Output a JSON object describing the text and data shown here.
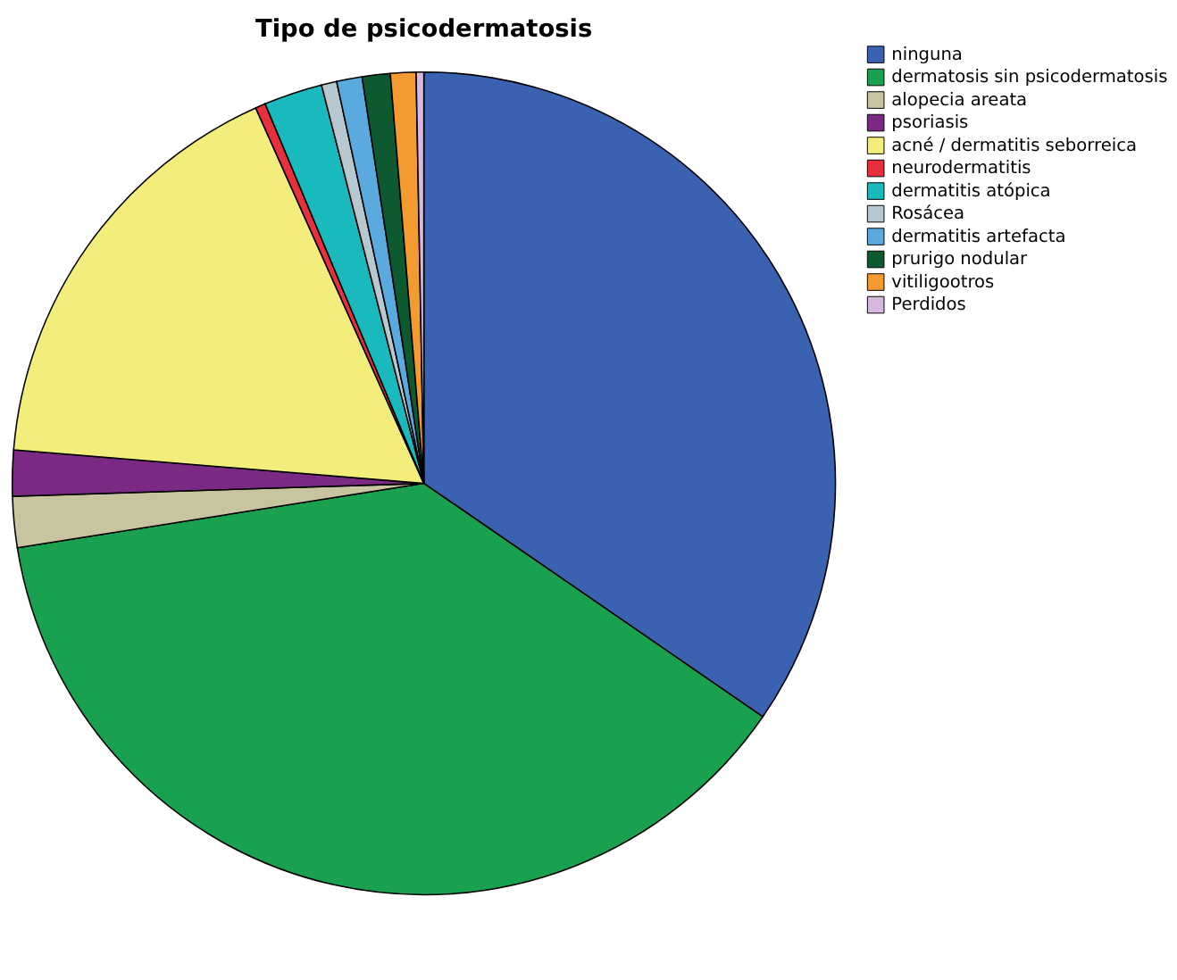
{
  "chart_data": {
    "type": "pie",
    "title": "Tipo de psicodermatosis",
    "categories": [
      "ninguna",
      "dermatosis sin psicodermatosis",
      "alopecia areata",
      "psoriasis",
      "acné / dermatitis seborreica",
      "neurodermatitis",
      "dermatitis atópica",
      "Rosácea",
      "dermatitis artefacta",
      "prurigo nodular",
      "vitiligootros",
      "Perdidos"
    ],
    "values": [
      34.6,
      37.9,
      2.0,
      1.8,
      17.0,
      0.4,
      2.3,
      0.6,
      1.0,
      1.1,
      1.0,
      0.3
    ],
    "colors": [
      "#3a62b0",
      "#1aa150",
      "#c9c4a0",
      "#7a2a82",
      "#f3ee7c",
      "#e8303c",
      "#1ab9bd",
      "#b8c8d0",
      "#5aaae0",
      "#0e5a30",
      "#f39a30",
      "#d8b8e0"
    ],
    "legend": "top right"
  }
}
